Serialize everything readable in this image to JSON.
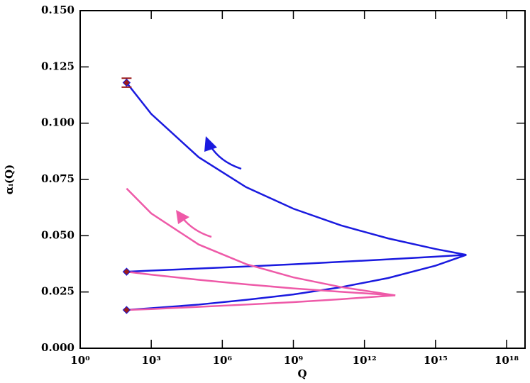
{
  "chart_data": {
    "type": "line",
    "xlabel": "Q",
    "ylabel": "αᵢ(Q)",
    "xscale": "log",
    "xlim": [
      1,
      6e+18
    ],
    "xticks": [
      {
        "value": 1,
        "label": "10⁰"
      },
      {
        "value": 1000.0,
        "label": "10³"
      },
      {
        "value": 1000000.0,
        "label": "10⁶"
      },
      {
        "value": 1000000000.0,
        "label": "10⁹"
      },
      {
        "value": 1000000000000.0,
        "label": "10¹²"
      },
      {
        "value": 1000000000000000.0,
        "label": "10¹⁵"
      },
      {
        "value": 1e+18,
        "label": "10¹⁸"
      }
    ],
    "ylim": [
      0,
      0.15
    ],
    "yticks": [
      {
        "value": 0,
        "label": "0.000"
      },
      {
        "value": 0.025,
        "label": "0.025"
      },
      {
        "value": 0.05,
        "label": "0.050"
      },
      {
        "value": 0.075,
        "label": "0.075"
      },
      {
        "value": 0.1,
        "label": "0.100"
      },
      {
        "value": 0.125,
        "label": "0.125"
      },
      {
        "value": 0.15,
        "label": "0.150"
      }
    ],
    "series": [
      {
        "color": "#1a1adf",
        "x": [
          91,
          1000.0,
          100000.0,
          10000000.0,
          1000000000.0,
          100000000000.0,
          10000000000000.0,
          1000000000000000.0,
          2e+16
        ],
        "values": [
          0.118,
          0.1041,
          0.0849,
          0.0716,
          0.062,
          0.0546,
          0.0488,
          0.0441,
          0.0415
        ]
      },
      {
        "color": "#1a1adf",
        "x": [
          91,
          1000.0,
          100000.0,
          10000000.0,
          1000000000.0,
          100000000000.0,
          10000000000000.0,
          1000000000000000.0,
          2e+16
        ],
        "values": [
          0.034,
          0.0345,
          0.0354,
          0.0363,
          0.0373,
          0.0384,
          0.0395,
          0.0407,
          0.0415
        ]
      },
      {
        "color": "#1a1adf",
        "x": [
          91,
          1000.0,
          100000.0,
          10000000.0,
          1000000000.0,
          100000000000.0,
          10000000000000.0,
          1000000000000000.0,
          2e+16
        ],
        "values": [
          0.017,
          0.0178,
          0.0194,
          0.0215,
          0.0239,
          0.0271,
          0.0312,
          0.0367,
          0.0415
        ]
      },
      {
        "color": "#ee5aa8",
        "x": [
          91,
          1000.0,
          100000.0,
          10000000.0,
          1000000000.0,
          100000000000.0,
          20000000000000.0
        ],
        "values": [
          0.071,
          0.0599,
          0.0461,
          0.0374,
          0.0315,
          0.0272,
          0.0235
        ]
      },
      {
        "color": "#ee5aa8",
        "x": [
          91,
          1000.0,
          100000.0,
          10000000.0,
          1000000000.0,
          100000000000.0,
          20000000000000.0
        ],
        "values": [
          0.034,
          0.0327,
          0.0304,
          0.0284,
          0.0266,
          0.0251,
          0.0235
        ]
      },
      {
        "color": "#ee5aa8",
        "x": [
          91,
          1000.0,
          100000.0,
          10000000.0,
          1000000000.0,
          100000000000.0,
          20000000000000.0
        ],
        "values": [
          0.017,
          0.0174,
          0.0184,
          0.0194,
          0.0205,
          0.0218,
          0.0235
        ]
      }
    ],
    "points": {
      "x": [
        91,
        91,
        91
      ],
      "values": [
        0.118,
        0.034,
        0.017
      ],
      "color": "#9b1c1c"
    },
    "error_bar": {
      "x": 91,
      "value": 0.118,
      "error": 0.002,
      "color": "#9b1c1c"
    }
  }
}
